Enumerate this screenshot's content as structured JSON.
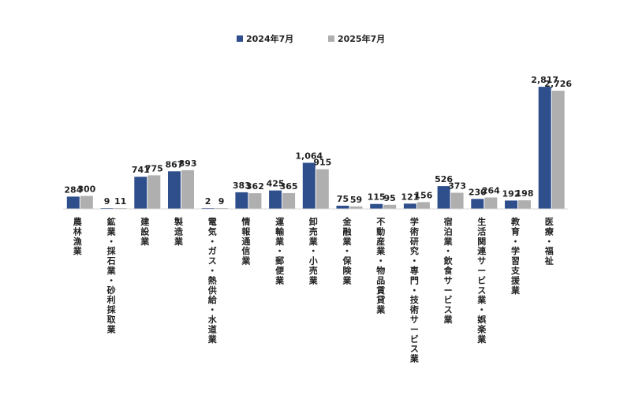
{
  "chart_data": {
    "type": "bar",
    "title": "",
    "xlabel": "",
    "ylabel": "",
    "ylim": [
      0,
      3000
    ],
    "grid": false,
    "legend_position": "top-center",
    "categories": [
      "農林漁業",
      "鉱業・採石業・砂利採取業",
      "建設業",
      "製造業",
      "電気・ガス・熱供給・水道業",
      "情報通信業",
      "運輸業・郵便業",
      "卸売業・小売業",
      "金融業・保険業",
      "不動産業・物品賃貸業",
      "学術研究・専門・技術サービス業",
      "宿泊業・飲食サービス業",
      "生活関連サービス業・娯楽業",
      "教育・学習支援業",
      "医療・福祉"
    ],
    "series": [
      {
        "name": "2024年7月",
        "color": "#2F4E8C",
        "values": [
          284,
          9,
          741,
          867,
          2,
          383,
          425,
          1064,
          75,
          115,
          121,
          526,
          230,
          192,
          2817
        ],
        "labels": [
          "284",
          "9",
          "741",
          "867",
          "2",
          "383",
          "425",
          "1,064",
          "75",
          "115",
          "121",
          "526",
          "230",
          "192",
          "2,817"
        ]
      },
      {
        "name": "2025年7月",
        "color": "#AFAFAF",
        "values": [
          300,
          11,
          775,
          893,
          9,
          362,
          365,
          915,
          59,
          95,
          156,
          373,
          264,
          198,
          2726
        ],
        "labels": [
          "300",
          "11",
          "775",
          "893",
          "9",
          "362",
          "365",
          "915",
          "59",
          "95",
          "156",
          "373",
          "264",
          "198",
          "2,726"
        ]
      }
    ]
  }
}
